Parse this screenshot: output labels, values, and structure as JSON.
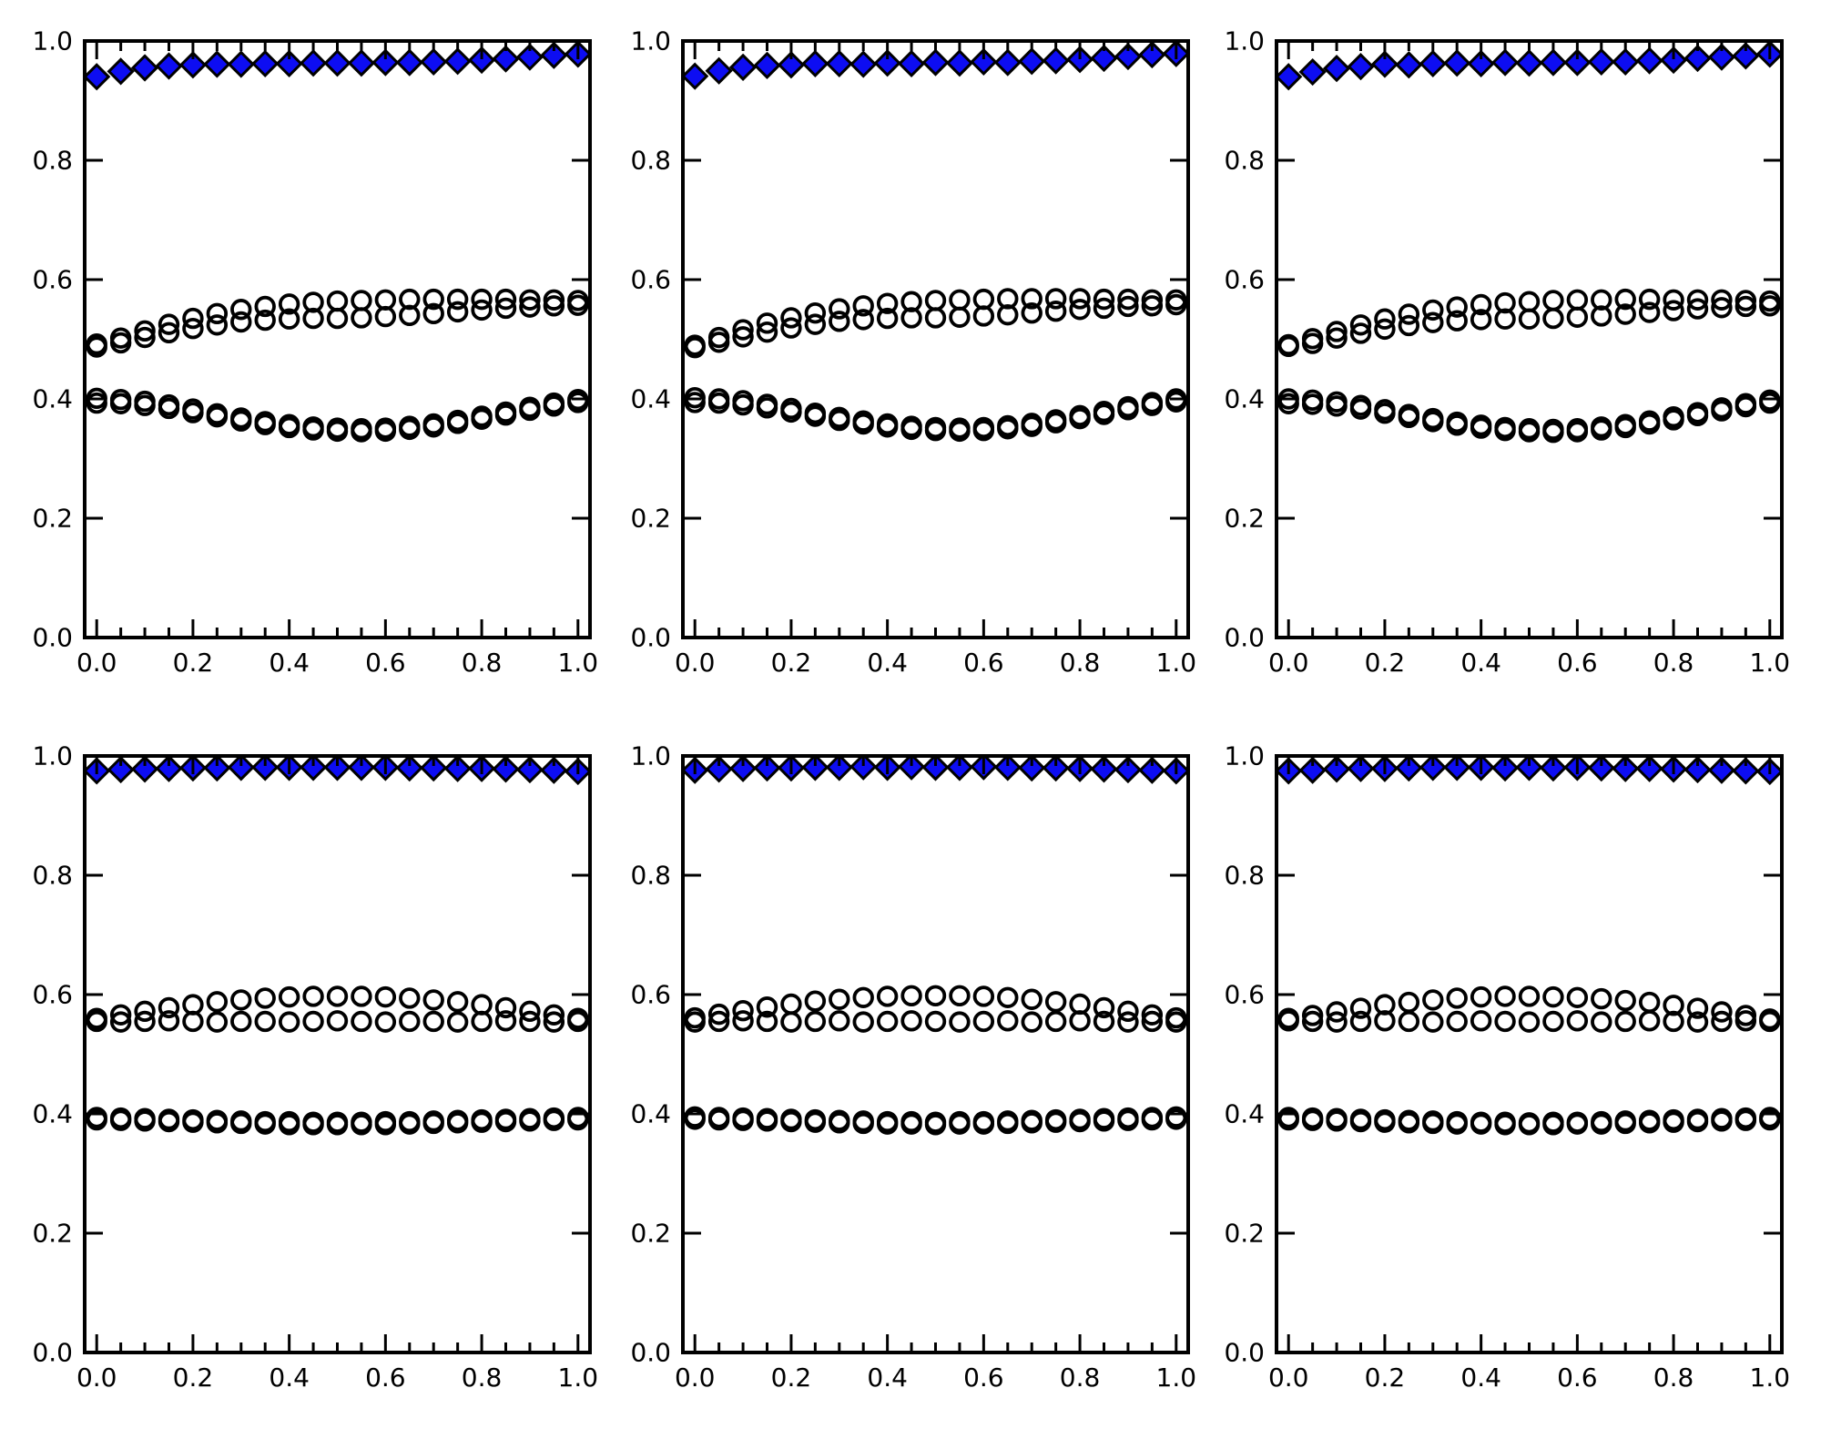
{
  "figure": {
    "background": "#ffffff",
    "grid_rows": 2,
    "grid_cols": 3
  },
  "style": {
    "axis_color": "#000000",
    "diamond_fill": "#0d0df2",
    "marker_edge_color": "#000000"
  },
  "axes_config": {
    "xlim": [
      -0.025,
      1.025
    ],
    "ylim": [
      0.0,
      1.0
    ],
    "xticks": [
      0.0,
      0.2,
      0.4,
      0.6,
      0.8,
      1.0
    ],
    "yticks": [
      0.0,
      0.2,
      0.4,
      0.6,
      0.8,
      1.0
    ],
    "xtick_labels": [
      "0.0",
      "0.2",
      "0.4",
      "0.6",
      "0.8",
      "1.0"
    ],
    "ytick_labels": [
      "0.0",
      "0.2",
      "0.4",
      "0.6",
      "0.8",
      "1.0"
    ],
    "x_minor_step": 0.05,
    "grid": false,
    "legend": false,
    "title": "",
    "xlabel": "",
    "ylabel": ""
  },
  "chart_data": [
    {
      "id": "top-left",
      "row": 0,
      "col": 0,
      "type": "scatter",
      "x": [
        0,
        0.05,
        0.1,
        0.15,
        0.2,
        0.25,
        0.3,
        0.35,
        0.4,
        0.45,
        0.5,
        0.55,
        0.6,
        0.65,
        0.7,
        0.75,
        0.8,
        0.85,
        0.9,
        0.95,
        1.0
      ],
      "series": [
        {
          "name": "open-circle-upper-a",
          "marker": "open-circle",
          "values": [
            0.492,
            0.502,
            0.514,
            0.525,
            0.535,
            0.543,
            0.55,
            0.555,
            0.559,
            0.562,
            0.564,
            0.565,
            0.566,
            0.567,
            0.567,
            0.567,
            0.567,
            0.567,
            0.566,
            0.566,
            0.565
          ]
        },
        {
          "name": "open-circle-upper-b",
          "marker": "open-circle",
          "values": [
            0.487,
            0.494,
            0.503,
            0.511,
            0.518,
            0.524,
            0.529,
            0.532,
            0.534,
            0.535,
            0.535,
            0.536,
            0.538,
            0.54,
            0.543,
            0.546,
            0.549,
            0.552,
            0.554,
            0.556,
            0.557
          ]
        },
        {
          "name": "open-circle-lower-a",
          "marker": "open-circle",
          "values": [
            0.401,
            0.399,
            0.396,
            0.39,
            0.383,
            0.375,
            0.368,
            0.362,
            0.357,
            0.353,
            0.351,
            0.35,
            0.351,
            0.354,
            0.358,
            0.364,
            0.371,
            0.378,
            0.386,
            0.393,
            0.399
          ]
        },
        {
          "name": "open-circle-lower-b",
          "marker": "open-circle",
          "values": [
            0.393,
            0.392,
            0.389,
            0.384,
            0.377,
            0.37,
            0.363,
            0.357,
            0.352,
            0.348,
            0.346,
            0.345,
            0.346,
            0.349,
            0.353,
            0.359,
            0.366,
            0.373,
            0.381,
            0.388,
            0.394
          ]
        },
        {
          "name": "filled-diamond",
          "marker": "diamond",
          "values": [
            0.94,
            0.949,
            0.955,
            0.958,
            0.96,
            0.961,
            0.961,
            0.962,
            0.962,
            0.963,
            0.963,
            0.963,
            0.964,
            0.964,
            0.965,
            0.966,
            0.968,
            0.97,
            0.973,
            0.976,
            0.978
          ]
        }
      ]
    },
    {
      "id": "top-middle",
      "row": 0,
      "col": 1,
      "type": "scatter",
      "x": [
        0,
        0.05,
        0.1,
        0.15,
        0.2,
        0.25,
        0.3,
        0.35,
        0.4,
        0.45,
        0.5,
        0.55,
        0.6,
        0.65,
        0.7,
        0.75,
        0.8,
        0.85,
        0.9,
        0.95,
        1.0
      ],
      "series": [
        {
          "name": "open-circle-upper-a",
          "marker": "open-circle",
          "values": [
            0.49,
            0.503,
            0.516,
            0.527,
            0.536,
            0.544,
            0.551,
            0.556,
            0.56,
            0.563,
            0.565,
            0.566,
            0.567,
            0.568,
            0.568,
            0.568,
            0.568,
            0.567,
            0.567,
            0.566,
            0.566
          ]
        },
        {
          "name": "open-circle-upper-b",
          "marker": "open-circle",
          "values": [
            0.486,
            0.495,
            0.504,
            0.512,
            0.519,
            0.525,
            0.53,
            0.533,
            0.535,
            0.536,
            0.536,
            0.537,
            0.539,
            0.541,
            0.544,
            0.547,
            0.55,
            0.552,
            0.555,
            0.556,
            0.558
          ]
        },
        {
          "name": "open-circle-lower-a",
          "marker": "open-circle",
          "values": [
            0.402,
            0.4,
            0.397,
            0.391,
            0.384,
            0.376,
            0.369,
            0.363,
            0.358,
            0.354,
            0.352,
            0.351,
            0.352,
            0.355,
            0.359,
            0.365,
            0.372,
            0.379,
            0.387,
            0.394,
            0.4
          ]
        },
        {
          "name": "open-circle-lower-b",
          "marker": "open-circle",
          "values": [
            0.394,
            0.393,
            0.39,
            0.385,
            0.378,
            0.371,
            0.364,
            0.358,
            0.353,
            0.349,
            0.347,
            0.346,
            0.347,
            0.35,
            0.354,
            0.36,
            0.367,
            0.374,
            0.382,
            0.389,
            0.395
          ]
        },
        {
          "name": "filled-diamond",
          "marker": "diamond",
          "values": [
            0.941,
            0.95,
            0.956,
            0.959,
            0.96,
            0.962,
            0.962,
            0.961,
            0.963,
            0.962,
            0.964,
            0.963,
            0.965,
            0.964,
            0.966,
            0.967,
            0.969,
            0.971,
            0.974,
            0.977,
            0.979
          ]
        }
      ]
    },
    {
      "id": "top-right",
      "row": 0,
      "col": 2,
      "type": "scatter",
      "x": [
        0,
        0.05,
        0.1,
        0.15,
        0.2,
        0.25,
        0.3,
        0.35,
        0.4,
        0.45,
        0.5,
        0.55,
        0.6,
        0.65,
        0.7,
        0.75,
        0.8,
        0.85,
        0.9,
        0.95,
        1.0
      ],
      "series": [
        {
          "name": "open-circle-upper-a",
          "marker": "open-circle",
          "values": [
            0.491,
            0.501,
            0.513,
            0.524,
            0.534,
            0.542,
            0.549,
            0.554,
            0.558,
            0.561,
            0.563,
            0.565,
            0.566,
            0.566,
            0.567,
            0.567,
            0.566,
            0.566,
            0.566,
            0.565,
            0.564
          ]
        },
        {
          "name": "open-circle-upper-b",
          "marker": "open-circle",
          "values": [
            0.488,
            0.493,
            0.502,
            0.51,
            0.517,
            0.523,
            0.528,
            0.531,
            0.533,
            0.534,
            0.534,
            0.535,
            0.537,
            0.539,
            0.542,
            0.545,
            0.548,
            0.551,
            0.553,
            0.555,
            0.556
          ]
        },
        {
          "name": "open-circle-lower-a",
          "marker": "open-circle",
          "values": [
            0.4,
            0.398,
            0.395,
            0.389,
            0.382,
            0.374,
            0.367,
            0.361,
            0.356,
            0.352,
            0.35,
            0.349,
            0.35,
            0.353,
            0.357,
            0.363,
            0.37,
            0.377,
            0.385,
            0.392,
            0.398
          ]
        },
        {
          "name": "open-circle-lower-b",
          "marker": "open-circle",
          "values": [
            0.392,
            0.391,
            0.388,
            0.383,
            0.376,
            0.369,
            0.362,
            0.356,
            0.351,
            0.347,
            0.345,
            0.344,
            0.345,
            0.348,
            0.352,
            0.358,
            0.365,
            0.372,
            0.38,
            0.387,
            0.393
          ]
        },
        {
          "name": "filled-diamond",
          "marker": "diamond",
          "values": [
            0.94,
            0.948,
            0.954,
            0.957,
            0.961,
            0.96,
            0.962,
            0.963,
            0.962,
            0.964,
            0.963,
            0.964,
            0.964,
            0.965,
            0.965,
            0.967,
            0.968,
            0.971,
            0.973,
            0.975,
            0.978
          ]
        }
      ]
    },
    {
      "id": "bottom-left",
      "row": 1,
      "col": 0,
      "type": "scatter",
      "x": [
        0,
        0.05,
        0.1,
        0.15,
        0.2,
        0.25,
        0.3,
        0.35,
        0.4,
        0.45,
        0.5,
        0.55,
        0.6,
        0.65,
        0.7,
        0.75,
        0.8,
        0.85,
        0.9,
        0.95,
        1.0
      ],
      "series": [
        {
          "name": "open-circle-upper-a",
          "marker": "open-circle",
          "values": [
            0.56,
            0.566,
            0.572,
            0.578,
            0.583,
            0.588,
            0.591,
            0.594,
            0.596,
            0.597,
            0.597,
            0.597,
            0.596,
            0.594,
            0.591,
            0.588,
            0.583,
            0.578,
            0.572,
            0.566,
            0.56
          ]
        },
        {
          "name": "open-circle-upper-b",
          "marker": "open-circle",
          "values": [
            0.555,
            0.554,
            0.555,
            0.556,
            0.555,
            0.554,
            0.555,
            0.555,
            0.554,
            0.555,
            0.556,
            0.555,
            0.554,
            0.555,
            0.555,
            0.554,
            0.555,
            0.556,
            0.555,
            0.554,
            0.555
          ]
        },
        {
          "name": "open-circle-lower-a",
          "marker": "open-circle",
          "values": [
            0.394,
            0.393,
            0.392,
            0.391,
            0.39,
            0.389,
            0.388,
            0.387,
            0.387,
            0.386,
            0.386,
            0.386,
            0.387,
            0.387,
            0.388,
            0.389,
            0.39,
            0.391,
            0.392,
            0.393,
            0.394
          ]
        },
        {
          "name": "open-circle-lower-b",
          "marker": "open-circle",
          "values": [
            0.39,
            0.389,
            0.388,
            0.387,
            0.386,
            0.385,
            0.384,
            0.383,
            0.382,
            0.382,
            0.382,
            0.382,
            0.382,
            0.383,
            0.384,
            0.385,
            0.386,
            0.387,
            0.388,
            0.389,
            0.39
          ]
        },
        {
          "name": "filled-diamond",
          "marker": "diamond",
          "values": [
            0.975,
            0.977,
            0.978,
            0.979,
            0.98,
            0.98,
            0.981,
            0.981,
            0.981,
            0.981,
            0.981,
            0.981,
            0.981,
            0.98,
            0.98,
            0.979,
            0.979,
            0.978,
            0.977,
            0.976,
            0.974
          ]
        }
      ]
    },
    {
      "id": "bottom-middle",
      "row": 1,
      "col": 1,
      "type": "scatter",
      "x": [
        0,
        0.05,
        0.1,
        0.15,
        0.2,
        0.25,
        0.3,
        0.35,
        0.4,
        0.45,
        0.5,
        0.55,
        0.6,
        0.65,
        0.7,
        0.75,
        0.8,
        0.85,
        0.9,
        0.95,
        1.0
      ],
      "series": [
        {
          "name": "open-circle-upper-a",
          "marker": "open-circle",
          "values": [
            0.561,
            0.567,
            0.573,
            0.579,
            0.584,
            0.589,
            0.592,
            0.595,
            0.597,
            0.598,
            0.598,
            0.598,
            0.597,
            0.595,
            0.592,
            0.588,
            0.584,
            0.578,
            0.572,
            0.566,
            0.561
          ]
        },
        {
          "name": "open-circle-upper-b",
          "marker": "open-circle",
          "values": [
            0.554,
            0.555,
            0.556,
            0.555,
            0.554,
            0.555,
            0.556,
            0.554,
            0.555,
            0.556,
            0.555,
            0.554,
            0.555,
            0.556,
            0.554,
            0.555,
            0.556,
            0.555,
            0.554,
            0.555,
            0.554
          ]
        },
        {
          "name": "open-circle-lower-a",
          "marker": "open-circle",
          "values": [
            0.395,
            0.394,
            0.393,
            0.392,
            0.391,
            0.39,
            0.389,
            0.388,
            0.387,
            0.387,
            0.386,
            0.387,
            0.387,
            0.388,
            0.389,
            0.39,
            0.391,
            0.392,
            0.393,
            0.394,
            0.395
          ]
        },
        {
          "name": "open-circle-lower-b",
          "marker": "open-circle",
          "values": [
            0.391,
            0.39,
            0.389,
            0.388,
            0.387,
            0.386,
            0.385,
            0.384,
            0.383,
            0.383,
            0.382,
            0.383,
            0.383,
            0.384,
            0.385,
            0.386,
            0.387,
            0.388,
            0.389,
            0.39,
            0.391
          ]
        },
        {
          "name": "filled-diamond",
          "marker": "diamond",
          "values": [
            0.976,
            0.978,
            0.979,
            0.98,
            0.98,
            0.981,
            0.981,
            0.982,
            0.981,
            0.982,
            0.981,
            0.981,
            0.982,
            0.981,
            0.98,
            0.98,
            0.979,
            0.978,
            0.977,
            0.976,
            0.975
          ]
        }
      ]
    },
    {
      "id": "bottom-right",
      "row": 1,
      "col": 2,
      "type": "scatter",
      "x": [
        0,
        0.05,
        0.1,
        0.15,
        0.2,
        0.25,
        0.3,
        0.35,
        0.4,
        0.45,
        0.5,
        0.55,
        0.6,
        0.65,
        0.7,
        0.75,
        0.8,
        0.85,
        0.9,
        0.95,
        1.0
      ],
      "series": [
        {
          "name": "open-circle-upper-a",
          "marker": "open-circle",
          "values": [
            0.56,
            0.565,
            0.571,
            0.577,
            0.583,
            0.587,
            0.591,
            0.594,
            0.596,
            0.597,
            0.597,
            0.596,
            0.595,
            0.593,
            0.59,
            0.587,
            0.582,
            0.577,
            0.571,
            0.565,
            0.559
          ]
        },
        {
          "name": "open-circle-upper-b",
          "marker": "open-circle",
          "values": [
            0.556,
            0.555,
            0.554,
            0.555,
            0.556,
            0.555,
            0.554,
            0.555,
            0.556,
            0.555,
            0.554,
            0.555,
            0.556,
            0.554,
            0.555,
            0.556,
            0.555,
            0.554,
            0.555,
            0.556,
            0.555
          ]
        },
        {
          "name": "open-circle-lower-a",
          "marker": "open-circle",
          "values": [
            0.394,
            0.393,
            0.392,
            0.391,
            0.39,
            0.389,
            0.388,
            0.387,
            0.386,
            0.386,
            0.385,
            0.386,
            0.386,
            0.387,
            0.388,
            0.389,
            0.39,
            0.391,
            0.392,
            0.393,
            0.394
          ]
        },
        {
          "name": "open-circle-lower-b",
          "marker": "open-circle",
          "values": [
            0.39,
            0.389,
            0.388,
            0.387,
            0.386,
            0.385,
            0.384,
            0.383,
            0.383,
            0.382,
            0.382,
            0.382,
            0.383,
            0.383,
            0.384,
            0.385,
            0.386,
            0.387,
            0.388,
            0.389,
            0.39
          ]
        },
        {
          "name": "filled-diamond",
          "marker": "diamond",
          "values": [
            0.975,
            0.976,
            0.978,
            0.979,
            0.979,
            0.98,
            0.981,
            0.981,
            0.981,
            0.98,
            0.981,
            0.98,
            0.981,
            0.98,
            0.979,
            0.979,
            0.978,
            0.977,
            0.976,
            0.975,
            0.974
          ]
        }
      ]
    }
  ]
}
